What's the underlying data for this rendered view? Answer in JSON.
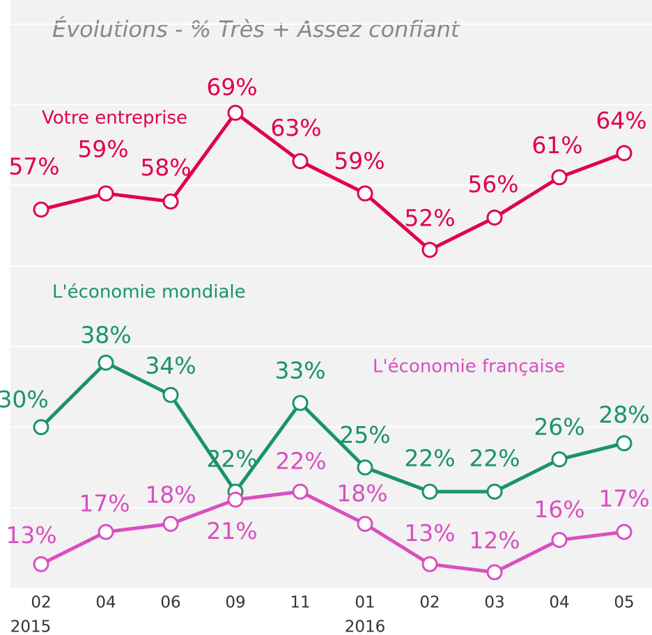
{
  "chart_data": {
    "type": "line",
    "title": "Évolutions - % Très + Assez confiant",
    "categories": [
      "02",
      "04",
      "06",
      "09",
      "11",
      "01",
      "02",
      "03",
      "04",
      "05"
    ],
    "x_years": [
      "2015",
      null,
      null,
      null,
      null,
      "2016",
      null,
      null,
      null,
      null
    ],
    "ylim": [
      10,
      83
    ],
    "yticks": [
      10,
      20,
      30,
      40,
      50,
      60,
      70,
      80
    ],
    "grid": true,
    "series": [
      {
        "name": "Votre entreprise",
        "color": "#e0004d",
        "values": [
          57,
          59,
          58,
          69,
          63,
          59,
          52,
          56,
          61,
          64
        ],
        "value_labels": [
          "57%",
          "59%",
          "58%",
          "69%",
          "63%",
          "59%",
          "52%",
          "56%",
          "61%",
          "64%"
        ]
      },
      {
        "name": "L'économie mondiale",
        "color": "#1a9464",
        "values": [
          30,
          38,
          34,
          22,
          33,
          25,
          22,
          22,
          26,
          28
        ],
        "value_labels": [
          "30%",
          "38%",
          "34%",
          "22%",
          "33%",
          "25%",
          "22%",
          "22%",
          "26%",
          "28%"
        ]
      },
      {
        "name": "L'économie française",
        "color": "#d94fbf",
        "values": [
          13,
          17,
          18,
          21,
          22,
          18,
          13,
          12,
          16,
          17
        ],
        "value_labels": [
          "13%",
          "17%",
          "18%",
          "21%",
          "22%",
          "18%",
          "13%",
          "12%",
          "16%",
          "17%"
        ]
      }
    ]
  }
}
